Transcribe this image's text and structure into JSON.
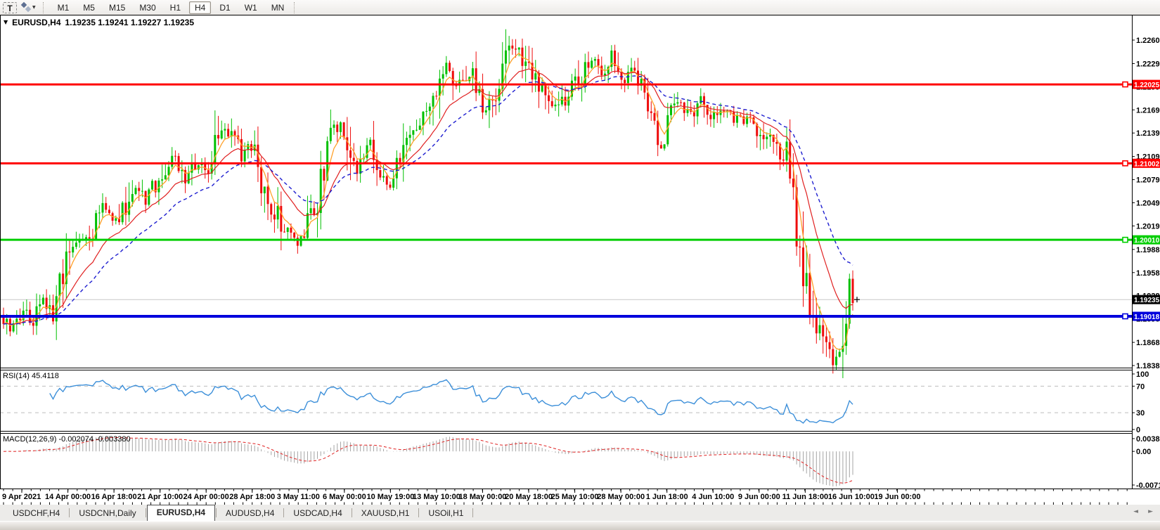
{
  "icons": {
    "title_marker": "▼",
    "dropdown_caret": "▼",
    "scroll_left": "◄",
    "scroll_right": "►"
  },
  "toolbar": {
    "text_tool_label": "T",
    "timeframes": [
      "M1",
      "M5",
      "M15",
      "M30",
      "H1",
      "H4",
      "D1",
      "W1",
      "MN"
    ],
    "active_timeframe": "H4"
  },
  "chart": {
    "title_symbol": "EURUSD,H4",
    "title_ohlc": "1.19235 1.19241 1.19227 1.19235",
    "price_axis": {
      "ticks": [
        "1.22600",
        "1.22295",
        "1.21995",
        "1.21695",
        "1.21395",
        "1.21090",
        "1.20790",
        "1.20490",
        "1.20190",
        "1.19885",
        "1.19585",
        "1.19285",
        "1.18985",
        "1.18680",
        "1.18380"
      ]
    },
    "hlines": [
      {
        "label": "1.22025",
        "price": 1.22025,
        "color": "#ff0000",
        "width": 3
      },
      {
        "label": "1.21002",
        "price": 1.21002,
        "color": "#ff0000",
        "width": 3
      },
      {
        "label": "1.20010",
        "price": 1.2001,
        "color": "#00ce00",
        "width": 3
      },
      {
        "label": "1.19018",
        "price": 1.19018,
        "color": "#0000dc",
        "width": 4
      }
    ],
    "current_price": {
      "label": "1.19235",
      "price": 1.19235,
      "line_color": "#c8c8c8",
      "box_color": "#000000"
    },
    "time_axis": {
      "labels": [
        "9 Apr 2021",
        "14 Apr 00:00",
        "16 Apr 18:00",
        "21 Apr 10:00",
        "24 Apr 00:00",
        "28 Apr 18:00",
        "3 May 11:00",
        "6 May 00:00",
        "10 May 19:00",
        "13 May 10:00",
        "18 May 00:00",
        "20 May 18:00",
        "25 May 10:00",
        "28 May 00:00",
        "1 Jun 18:00",
        "4 Jun 10:00",
        "9 Jun 00:00",
        "11 Jun 18:00",
        "16 Jun 10:00",
        "19 Jun 00:00"
      ]
    },
    "rsi": {
      "label": "RSI(14) 45.4118",
      "period": 14,
      "value": "45.4118",
      "levels": [
        "100",
        "70",
        "30",
        "0"
      ],
      "color": "#3c8fd9",
      "level_line_color": "#bdbdbd"
    },
    "macd": {
      "label": "MACD(12,26,9) -0.002074 -0.003380",
      "fast": 12,
      "slow": 26,
      "signal": 9,
      "main_value": "-0.002074",
      "signal_value": "-0.003380",
      "axis": [
        "0.003873",
        "0.00",
        "-0.00719"
      ],
      "hist_color": "#a4a4a4",
      "signal_color": "#e02020"
    },
    "chart_data": {
      "type": "candlestick",
      "symbol": "EURUSD",
      "timeframe": "H4",
      "candle_count": 258,
      "up_color": "#00c000",
      "down_color": "#ee0c0c",
      "noise_amplitude": 0.0014,
      "wick_amplitude": 0.0011,
      "close_path": [
        [
          0,
          1.19
        ],
        [
          3,
          1.1885
        ],
        [
          6,
          1.1912
        ],
        [
          9,
          1.1891
        ],
        [
          12,
          1.1926
        ],
        [
          15,
          1.1902
        ],
        [
          17,
          1.1936
        ],
        [
          20,
          1.1986
        ],
        [
          23,
          1.2006
        ],
        [
          26,
          1.2
        ],
        [
          30,
          1.2046
        ],
        [
          33,
          1.2026
        ],
        [
          36,
          1.2036
        ],
        [
          40,
          1.2076
        ],
        [
          43,
          1.2051
        ],
        [
          46,
          1.2071
        ],
        [
          50,
          1.2101
        ],
        [
          52,
          1.2106
        ],
        [
          55,
          1.2081
        ],
        [
          58,
          1.2096
        ],
        [
          62,
          1.2091
        ],
        [
          66,
          1.2151
        ],
        [
          69,
          1.2141
        ],
        [
          72,
          1.2106
        ],
        [
          75,
          1.2126
        ],
        [
          78,
          1.2071
        ],
        [
          82,
          1.2041
        ],
        [
          86,
          1.2006
        ],
        [
          89,
          1.2001
        ],
        [
          92,
          1.2026
        ],
        [
          95,
          1.2056
        ],
        [
          99,
          1.2131
        ],
        [
          102,
          1.2146
        ],
        [
          105,
          1.2121
        ],
        [
          107,
          1.2086
        ],
        [
          110,
          1.2131
        ],
        [
          113,
          1.2091
        ],
        [
          116,
          1.2071
        ],
        [
          119,
          1.2091
        ],
        [
          122,
          1.2126
        ],
        [
          125,
          1.2151
        ],
        [
          128,
          1.2161
        ],
        [
          131,
          1.2181
        ],
        [
          134,
          1.2226
        ],
        [
          136,
          1.2196
        ],
        [
          139,
          1.2206
        ],
        [
          142,
          1.2226
        ],
        [
          145,
          1.2156
        ],
        [
          148,
          1.2181
        ],
        [
          151,
          1.2221
        ],
        [
          154,
          1.2251
        ],
        [
          157,
          1.2231
        ],
        [
          160,
          1.2211
        ],
        [
          163,
          1.2191
        ],
        [
          166,
          1.2171
        ],
        [
          169,
          1.2181
        ],
        [
          172,
          1.2196
        ],
        [
          175,
          1.2216
        ],
        [
          178,
          1.2236
        ],
        [
          181,
          1.2216
        ],
        [
          184,
          1.2241
        ],
        [
          187,
          1.2206
        ],
        [
          190,
          1.2221
        ],
        [
          193,
          1.2196
        ],
        [
          196,
          1.2156
        ],
        [
          199,
          1.2121
        ],
        [
          202,
          1.2166
        ],
        [
          205,
          1.2176
        ],
        [
          208,
          1.2166
        ],
        [
          211,
          1.2181
        ],
        [
          214,
          1.2161
        ],
        [
          217,
          1.2171
        ],
        [
          220,
          1.2161
        ],
        [
          223,
          1.2156
        ],
        [
          226,
          1.2161
        ],
        [
          229,
          1.2141
        ],
        [
          232,
          1.2131
        ],
        [
          235,
          1.2116
        ],
        [
          237,
          1.2106
        ],
        [
          239,
          1.2041
        ],
        [
          241,
          1.1991
        ],
        [
          243,
          1.1941
        ],
        [
          245,
          1.1911
        ],
        [
          247,
          1.1881
        ],
        [
          249,
          1.1866
        ],
        [
          251,
          1.1846
        ],
        [
          253,
          1.1876
        ],
        [
          255,
          1.1906
        ],
        [
          256,
          1.1946
        ],
        [
          257,
          1.1924
        ]
      ],
      "moving_averages": [
        {
          "period": 5,
          "color": "#ffa028",
          "width": 1.3,
          "style": "solid"
        },
        {
          "period": 16,
          "color": "#e02020",
          "width": 1.2,
          "style": "solid"
        },
        {
          "period": 30,
          "color": "#1f1fd0",
          "width": 1.4,
          "style": "dash"
        }
      ]
    }
  },
  "tabs": {
    "items": [
      {
        "label": "USDCHF,H4"
      },
      {
        "label": "USDCNH,Daily"
      },
      {
        "label": "EURUSD,H4"
      },
      {
        "label": "AUDUSD,H4"
      },
      {
        "label": "USDCAD,H4"
      },
      {
        "label": "XAUUSD,H1"
      },
      {
        "label": "USOil,H1"
      }
    ],
    "active": "EURUSD,H4"
  }
}
